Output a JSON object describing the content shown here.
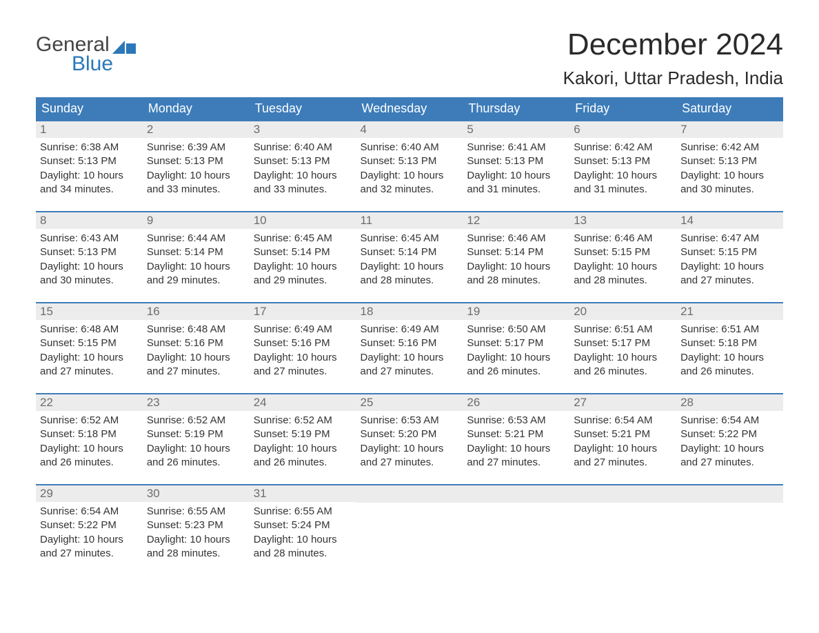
{
  "logo": {
    "word1": "General",
    "word2": "Blue"
  },
  "title": "December 2024",
  "location": "Kakori, Uttar Pradesh, India",
  "colors": {
    "header_bg": "#3d7cb9",
    "header_text": "#ffffff",
    "daynum_bg": "#ececec",
    "daynum_text": "#6c6c6c",
    "row_divider": "#3d7cb9",
    "body_text": "#333333",
    "logo_gray": "#444444",
    "logo_blue": "#2b78b9",
    "background": "#ffffff"
  },
  "weekdays": [
    "Sunday",
    "Monday",
    "Tuesday",
    "Wednesday",
    "Thursday",
    "Friday",
    "Saturday"
  ],
  "weeks": [
    [
      {
        "day": "1",
        "sunrise": "Sunrise: 6:38 AM",
        "sunset": "Sunset: 5:13 PM",
        "daylight1": "Daylight: 10 hours",
        "daylight2": "and 34 minutes."
      },
      {
        "day": "2",
        "sunrise": "Sunrise: 6:39 AM",
        "sunset": "Sunset: 5:13 PM",
        "daylight1": "Daylight: 10 hours",
        "daylight2": "and 33 minutes."
      },
      {
        "day": "3",
        "sunrise": "Sunrise: 6:40 AM",
        "sunset": "Sunset: 5:13 PM",
        "daylight1": "Daylight: 10 hours",
        "daylight2": "and 33 minutes."
      },
      {
        "day": "4",
        "sunrise": "Sunrise: 6:40 AM",
        "sunset": "Sunset: 5:13 PM",
        "daylight1": "Daylight: 10 hours",
        "daylight2": "and 32 minutes."
      },
      {
        "day": "5",
        "sunrise": "Sunrise: 6:41 AM",
        "sunset": "Sunset: 5:13 PM",
        "daylight1": "Daylight: 10 hours",
        "daylight2": "and 31 minutes."
      },
      {
        "day": "6",
        "sunrise": "Sunrise: 6:42 AM",
        "sunset": "Sunset: 5:13 PM",
        "daylight1": "Daylight: 10 hours",
        "daylight2": "and 31 minutes."
      },
      {
        "day": "7",
        "sunrise": "Sunrise: 6:42 AM",
        "sunset": "Sunset: 5:13 PM",
        "daylight1": "Daylight: 10 hours",
        "daylight2": "and 30 minutes."
      }
    ],
    [
      {
        "day": "8",
        "sunrise": "Sunrise: 6:43 AM",
        "sunset": "Sunset: 5:13 PM",
        "daylight1": "Daylight: 10 hours",
        "daylight2": "and 30 minutes."
      },
      {
        "day": "9",
        "sunrise": "Sunrise: 6:44 AM",
        "sunset": "Sunset: 5:14 PM",
        "daylight1": "Daylight: 10 hours",
        "daylight2": "and 29 minutes."
      },
      {
        "day": "10",
        "sunrise": "Sunrise: 6:45 AM",
        "sunset": "Sunset: 5:14 PM",
        "daylight1": "Daylight: 10 hours",
        "daylight2": "and 29 minutes."
      },
      {
        "day": "11",
        "sunrise": "Sunrise: 6:45 AM",
        "sunset": "Sunset: 5:14 PM",
        "daylight1": "Daylight: 10 hours",
        "daylight2": "and 28 minutes."
      },
      {
        "day": "12",
        "sunrise": "Sunrise: 6:46 AM",
        "sunset": "Sunset: 5:14 PM",
        "daylight1": "Daylight: 10 hours",
        "daylight2": "and 28 minutes."
      },
      {
        "day": "13",
        "sunrise": "Sunrise: 6:46 AM",
        "sunset": "Sunset: 5:15 PM",
        "daylight1": "Daylight: 10 hours",
        "daylight2": "and 28 minutes."
      },
      {
        "day": "14",
        "sunrise": "Sunrise: 6:47 AM",
        "sunset": "Sunset: 5:15 PM",
        "daylight1": "Daylight: 10 hours",
        "daylight2": "and 27 minutes."
      }
    ],
    [
      {
        "day": "15",
        "sunrise": "Sunrise: 6:48 AM",
        "sunset": "Sunset: 5:15 PM",
        "daylight1": "Daylight: 10 hours",
        "daylight2": "and 27 minutes."
      },
      {
        "day": "16",
        "sunrise": "Sunrise: 6:48 AM",
        "sunset": "Sunset: 5:16 PM",
        "daylight1": "Daylight: 10 hours",
        "daylight2": "and 27 minutes."
      },
      {
        "day": "17",
        "sunrise": "Sunrise: 6:49 AM",
        "sunset": "Sunset: 5:16 PM",
        "daylight1": "Daylight: 10 hours",
        "daylight2": "and 27 minutes."
      },
      {
        "day": "18",
        "sunrise": "Sunrise: 6:49 AM",
        "sunset": "Sunset: 5:16 PM",
        "daylight1": "Daylight: 10 hours",
        "daylight2": "and 27 minutes."
      },
      {
        "day": "19",
        "sunrise": "Sunrise: 6:50 AM",
        "sunset": "Sunset: 5:17 PM",
        "daylight1": "Daylight: 10 hours",
        "daylight2": "and 26 minutes."
      },
      {
        "day": "20",
        "sunrise": "Sunrise: 6:51 AM",
        "sunset": "Sunset: 5:17 PM",
        "daylight1": "Daylight: 10 hours",
        "daylight2": "and 26 minutes."
      },
      {
        "day": "21",
        "sunrise": "Sunrise: 6:51 AM",
        "sunset": "Sunset: 5:18 PM",
        "daylight1": "Daylight: 10 hours",
        "daylight2": "and 26 minutes."
      }
    ],
    [
      {
        "day": "22",
        "sunrise": "Sunrise: 6:52 AM",
        "sunset": "Sunset: 5:18 PM",
        "daylight1": "Daylight: 10 hours",
        "daylight2": "and 26 minutes."
      },
      {
        "day": "23",
        "sunrise": "Sunrise: 6:52 AM",
        "sunset": "Sunset: 5:19 PM",
        "daylight1": "Daylight: 10 hours",
        "daylight2": "and 26 minutes."
      },
      {
        "day": "24",
        "sunrise": "Sunrise: 6:52 AM",
        "sunset": "Sunset: 5:19 PM",
        "daylight1": "Daylight: 10 hours",
        "daylight2": "and 26 minutes."
      },
      {
        "day": "25",
        "sunrise": "Sunrise: 6:53 AM",
        "sunset": "Sunset: 5:20 PM",
        "daylight1": "Daylight: 10 hours",
        "daylight2": "and 27 minutes."
      },
      {
        "day": "26",
        "sunrise": "Sunrise: 6:53 AM",
        "sunset": "Sunset: 5:21 PM",
        "daylight1": "Daylight: 10 hours",
        "daylight2": "and 27 minutes."
      },
      {
        "day": "27",
        "sunrise": "Sunrise: 6:54 AM",
        "sunset": "Sunset: 5:21 PM",
        "daylight1": "Daylight: 10 hours",
        "daylight2": "and 27 minutes."
      },
      {
        "day": "28",
        "sunrise": "Sunrise: 6:54 AM",
        "sunset": "Sunset: 5:22 PM",
        "daylight1": "Daylight: 10 hours",
        "daylight2": "and 27 minutes."
      }
    ],
    [
      {
        "day": "29",
        "sunrise": "Sunrise: 6:54 AM",
        "sunset": "Sunset: 5:22 PM",
        "daylight1": "Daylight: 10 hours",
        "daylight2": "and 27 minutes."
      },
      {
        "day": "30",
        "sunrise": "Sunrise: 6:55 AM",
        "sunset": "Sunset: 5:23 PM",
        "daylight1": "Daylight: 10 hours",
        "daylight2": "and 28 minutes."
      },
      {
        "day": "31",
        "sunrise": "Sunrise: 6:55 AM",
        "sunset": "Sunset: 5:24 PM",
        "daylight1": "Daylight: 10 hours",
        "daylight2": "and 28 minutes."
      },
      {},
      {},
      {},
      {}
    ]
  ]
}
